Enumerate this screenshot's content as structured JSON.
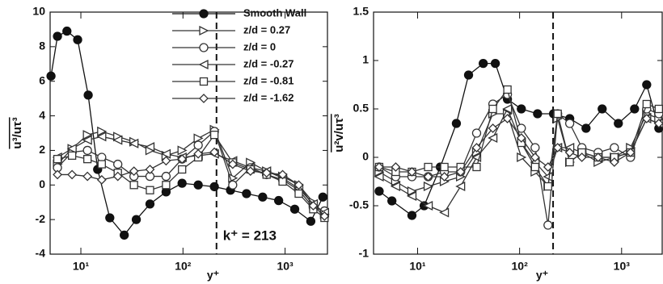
{
  "chart_data": [
    {
      "type": "line",
      "xlabel": "y⁺",
      "ylabel": "u³/uτ³",
      "xscale": "log",
      "xlim": [
        5,
        2600
      ],
      "ylim": [
        -4,
        10
      ],
      "xticks": [
        {
          "value": 10,
          "label": "10¹"
        },
        {
          "value": 100,
          "label": "10²"
        },
        {
          "value": 1000,
          "label": "10³"
        }
      ],
      "yticks": [
        -4,
        -2,
        0,
        2,
        4,
        6,
        8,
        10
      ],
      "legend": "top",
      "reference_line": {
        "x": 213,
        "label": "k⁺ = 213"
      },
      "series": [
        {
          "name": "Smooth Wall",
          "color": "#111",
          "marker": "filled-circle",
          "x": [
            5.1,
            5.9,
            7.3,
            9.3,
            11.8,
            14.6,
            19.2,
            26.6,
            34.9,
            47.5,
            68.3,
            98,
            141,
            203,
            292,
            419,
            603,
            865,
            1243,
            1786,
            2344
          ],
          "values": [
            6.3,
            8.6,
            8.9,
            8.4,
            5.2,
            0.9,
            -1.9,
            -2.9,
            -2.0,
            -1.1,
            -0.4,
            0.1,
            0.0,
            -0.1,
            -0.3,
            -0.5,
            -0.7,
            -0.9,
            -1.4,
            -2.1,
            -0.7
          ]
        },
        {
          "name": "z/d = 0.27",
          "color": "#333",
          "marker": "right-triangle",
          "x": [
            5.9,
            8.2,
            11.6,
            16.0,
            23.0,
            33.1,
            47.5,
            68.3,
            98,
            141,
            203,
            307,
            458,
            659,
            946,
            1361,
            1887,
            2432
          ],
          "values": [
            1.2,
            2.1,
            2.9,
            3.1,
            2.8,
            2.5,
            2.0,
            1.7,
            2.0,
            2.7,
            3.2,
            0.4,
            1.3,
            0.8,
            0.5,
            0.0,
            -1.0,
            -1.7
          ]
        },
        {
          "name": "z/d = 0",
          "color": "#333",
          "marker": "open-circle",
          "x": [
            5.9,
            8.2,
            11.6,
            16.0,
            23.0,
            33.1,
            47.5,
            68.3,
            98,
            141,
            203,
            307,
            458,
            659,
            946,
            1361,
            1887,
            2432
          ],
          "values": [
            1.0,
            1.9,
            2.0,
            1.6,
            1.2,
            0.5,
            0.5,
            0.5,
            1.5,
            2.3,
            3.1,
            0.0,
            1.0,
            0.6,
            0.3,
            -0.3,
            -1.3,
            -1.5
          ]
        },
        {
          "name": "z/d = -0.27",
          "color": "#333",
          "marker": "left-triangle",
          "x": [
            5.9,
            8.2,
            11.6,
            16.0,
            23.0,
            33.1,
            47.5,
            68.3,
            98,
            141,
            203,
            307,
            458,
            659,
            946,
            1361,
            1887,
            2432
          ],
          "values": [
            1.6,
            2.1,
            2.6,
            2.8,
            2.6,
            2.4,
            2.2,
            1.8,
            1.6,
            1.7,
            1.8,
            1.4,
            1.0,
            0.8,
            0.4,
            -0.2,
            -1.1,
            -1.6
          ]
        },
        {
          "name": "z/d = -0.81",
          "color": "#333",
          "marker": "square",
          "x": [
            5.9,
            8.2,
            11.6,
            16.0,
            23.0,
            33.1,
            47.5,
            68.3,
            98,
            141,
            203,
            307,
            458,
            659,
            946,
            1361,
            1887,
            2432
          ],
          "values": [
            1.5,
            1.7,
            1.5,
            1.2,
            0.7,
            0.0,
            -0.3,
            0.0,
            0.9,
            1.6,
            2.9,
            1.3,
            0.9,
            0.6,
            0.2,
            -0.5,
            -1.4,
            -1.9
          ]
        },
        {
          "name": "z/d = -1.62",
          "color": "#333",
          "marker": "diamond",
          "x": [
            5.9,
            8.2,
            11.6,
            16.0,
            23.0,
            33.1,
            47.5,
            68.3,
            98,
            141,
            203,
            307,
            458,
            659,
            946,
            1361,
            1887,
            2432
          ],
          "values": [
            0.6,
            0.6,
            0.5,
            0.3,
            0.5,
            0.8,
            0.9,
            1.4,
            1.5,
            1.8,
            1.9,
            1.2,
            0.8,
            0.7,
            0.6,
            0.0,
            -1.2,
            -1.8
          ]
        }
      ]
    },
    {
      "type": "line",
      "xlabel": "y⁺",
      "ylabel": "u²v/uτ³",
      "xscale": "log",
      "xlim": [
        3.7,
        2500
      ],
      "ylim": [
        -1,
        1.5
      ],
      "xticks": [
        {
          "value": 10,
          "label": "10¹"
        },
        {
          "value": 100,
          "label": "10²"
        },
        {
          "value": 1000,
          "label": "10³"
        }
      ],
      "yticks": [
        -1,
        -0.5,
        0,
        0.5,
        1,
        1.5
      ],
      "reference_line": {
        "x": 213
      },
      "series": [
        {
          "color": "#111",
          "marker": "filled-circle",
          "x": [
            4.2,
            5.6,
            8.8,
            11.6,
            16.7,
            24.0,
            31.6,
            44.0,
            57.8,
            76.0,
            104,
            150,
            215,
            310,
            448,
            645,
            929,
            1340,
            1762,
            2317
          ],
          "values": [
            -0.35,
            -0.45,
            -0.6,
            -0.5,
            -0.1,
            0.35,
            0.85,
            0.97,
            0.97,
            0.6,
            0.5,
            0.45,
            0.45,
            0.4,
            0.3,
            0.5,
            0.35,
            0.5,
            0.75,
            0.3
          ]
        },
        {
          "color": "#333",
          "marker": "right-triangle",
          "x": [
            4.2,
            6.1,
            8.8,
            12.7,
            18.3,
            26.4,
            37.9,
            54.7,
            76.0,
            104,
            142,
            190,
            236,
            310,
            408,
            589,
            849,
            1223,
            1762,
            2317
          ],
          "values": [
            -0.15,
            -0.25,
            -0.35,
            -0.3,
            -0.25,
            -0.2,
            0.05,
            0.45,
            0.45,
            0.0,
            -0.15,
            -0.3,
            0.4,
            -0.05,
            0.05,
            -0.05,
            0.0,
            0.1,
            0.45,
            0.4
          ]
        },
        {
          "color": "#333",
          "marker": "open-circle",
          "x": [
            4.2,
            6.1,
            8.8,
            12.7,
            18.3,
            26.4,
            37.9,
            54.7,
            76.0,
            104,
            142,
            190,
            236,
            310,
            408,
            589,
            849,
            1223,
            1762,
            2317
          ],
          "values": [
            -0.1,
            -0.2,
            -0.2,
            -0.2,
            -0.15,
            -0.15,
            0.25,
            0.55,
            0.65,
            0.3,
            0.1,
            -0.7,
            0.45,
            0.35,
            0.1,
            0.05,
            0.1,
            0.0,
            0.5,
            0.45
          ]
        },
        {
          "color": "#333",
          "marker": "left-triangle",
          "x": [
            4.2,
            6.1,
            8.8,
            12.7,
            18.3,
            26.4,
            37.9,
            54.7,
            76.0,
            104,
            142,
            190,
            236,
            310,
            408,
            589,
            849,
            1223,
            1762,
            2317
          ],
          "values": [
            -0.2,
            -0.3,
            -0.4,
            -0.5,
            -0.57,
            -0.3,
            0.0,
            0.2,
            0.5,
            0.15,
            -0.05,
            -0.2,
            0.1,
            0.1,
            0.05,
            0.0,
            0.0,
            0.05,
            0.4,
            0.35
          ]
        },
        {
          "color": "#333",
          "marker": "square",
          "x": [
            4.2,
            6.1,
            8.8,
            12.7,
            18.3,
            26.4,
            37.9,
            54.7,
            76.0,
            104,
            142,
            190,
            236,
            310,
            408,
            589,
            849,
            1223,
            1762,
            2317
          ],
          "values": [
            -0.1,
            -0.15,
            -0.15,
            -0.1,
            -0.1,
            -0.1,
            -0.1,
            0.5,
            0.7,
            0.15,
            -0.1,
            -0.3,
            0.45,
            -0.05,
            0.05,
            0.0,
            0.0,
            0.05,
            0.55,
            0.5
          ]
        },
        {
          "color": "#333",
          "marker": "diamond",
          "x": [
            4.2,
            6.1,
            8.8,
            12.7,
            18.3,
            26.4,
            37.9,
            54.7,
            76.0,
            104,
            142,
            190,
            236,
            310,
            408,
            589,
            849,
            1223,
            1762,
            2317
          ],
          "values": [
            -0.1,
            -0.1,
            -0.15,
            -0.2,
            -0.2,
            -0.15,
            0.1,
            0.3,
            0.4,
            0.2,
            0.0,
            -0.1,
            0.1,
            0.05,
            0.0,
            0.0,
            -0.05,
            0.05,
            0.4,
            0.35
          ]
        }
      ]
    }
  ]
}
